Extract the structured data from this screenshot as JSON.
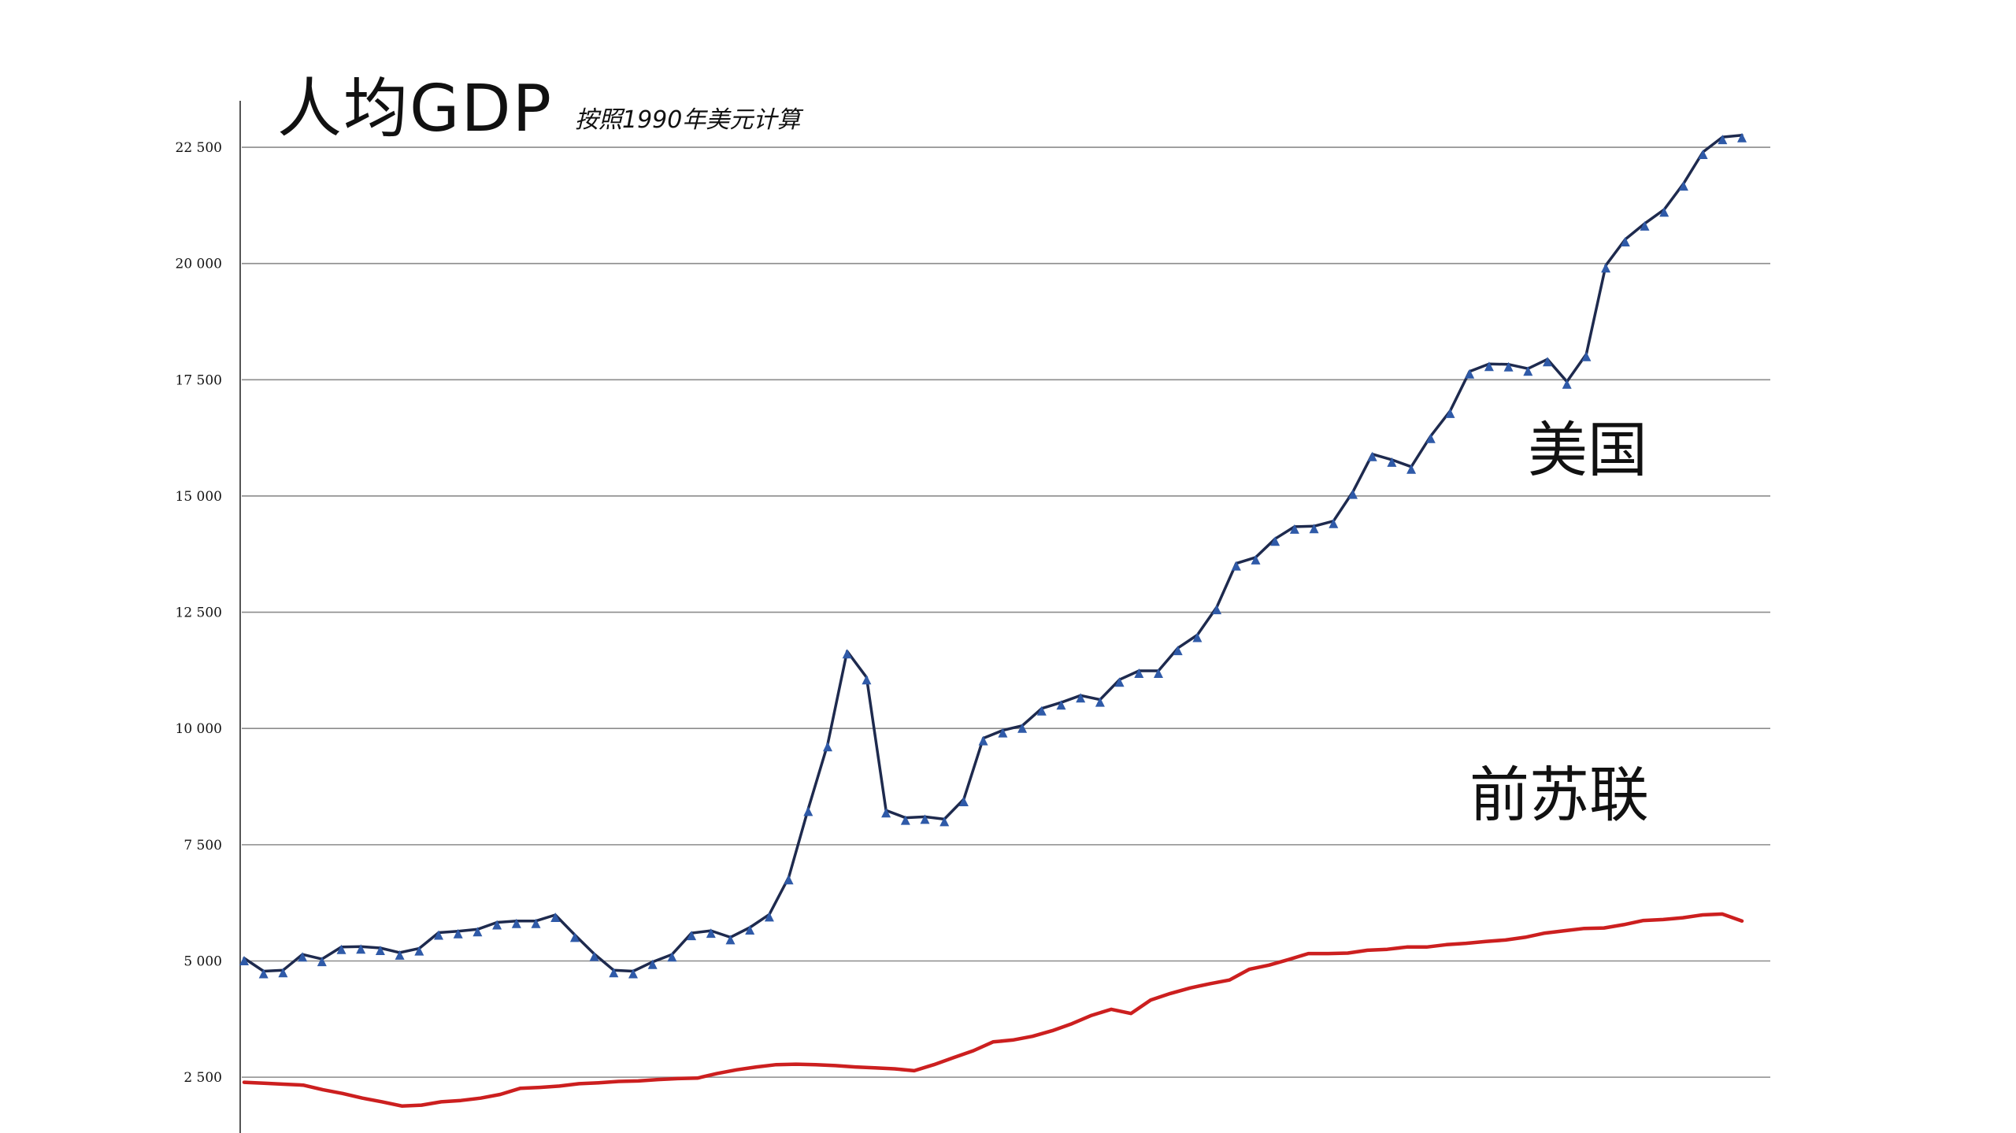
{
  "chart_data": {
    "type": "line",
    "title": "人均GDP",
    "subtitle": "按照1990年美元计算",
    "y_ticks": [
      {
        "value": 2500,
        "label": "2 500"
      },
      {
        "value": 5000,
        "label": "5 000"
      },
      {
        "value": 7500,
        "label": "7 500"
      },
      {
        "value": 10000,
        "label": "10 000"
      },
      {
        "value": 12500,
        "label": "12 500"
      },
      {
        "value": 15000,
        "label": "15 000"
      },
      {
        "value": 17500,
        "label": "17 500"
      },
      {
        "value": 20000,
        "label": "20 000"
      },
      {
        "value": 22500,
        "label": "22 500"
      }
    ],
    "ylim": [
      1300,
      23500
    ],
    "grid": true,
    "series": [
      {
        "name": "美国",
        "color": "#1e2a4e",
        "marker_color": "#2f5aa8",
        "values": [
          5060,
          4780,
          4800,
          5140,
          5040,
          5300,
          5310,
          5280,
          5180,
          5270,
          5610,
          5640,
          5680,
          5830,
          5860,
          5860,
          5990,
          5560,
          5150,
          4800,
          4780,
          4980,
          5140,
          5600,
          5650,
          5510,
          5720,
          6000,
          6800,
          8270,
          9660,
          11660,
          11100,
          8240,
          8080,
          8100,
          8050,
          8480,
          9790,
          9960,
          10060,
          10430,
          10560,
          10710,
          10620,
          11050,
          11240,
          11240,
          11730,
          12010,
          12610,
          13550,
          13680,
          14080,
          14340,
          14350,
          14460,
          15090,
          15900,
          15780,
          15630,
          16290,
          16830,
          17680,
          17840,
          17830,
          17740,
          17940,
          17460,
          18050,
          19960,
          20520,
          20860,
          21160,
          21720,
          22400,
          22720,
          22760
        ]
      },
      {
        "name": "前苏联",
        "color": "#cc1f1f",
        "values": [
          2390,
          2370,
          2350,
          2330,
          2230,
          2150,
          2050,
          1970,
          1880,
          1900,
          1970,
          2000,
          2050,
          2130,
          2260,
          2280,
          2310,
          2360,
          2380,
          2410,
          2420,
          2450,
          2470,
          2480,
          2580,
          2660,
          2720,
          2770,
          2780,
          2770,
          2750,
          2720,
          2700,
          2680,
          2640,
          2770,
          2920,
          3070,
          3260,
          3300,
          3380,
          3500,
          3650,
          3830,
          3960,
          3870,
          4160,
          4300,
          4420,
          4510,
          4590,
          4820,
          4910,
          5030,
          5160,
          5160,
          5170,
          5230,
          5250,
          5300,
          5300,
          5350,
          5380,
          5420,
          5450,
          5510,
          5600,
          5650,
          5700,
          5710,
          5780,
          5870,
          5890,
          5930,
          5990,
          6010,
          5860
        ]
      }
    ]
  }
}
